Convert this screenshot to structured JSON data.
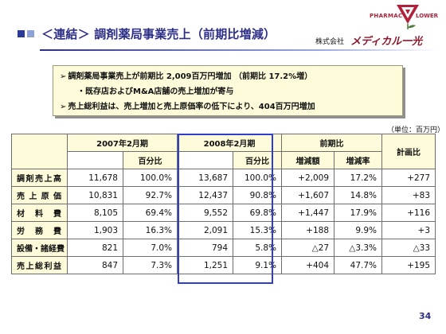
{
  "header": {
    "title": "＜連結＞ 調剤薬局事業売上（前期比増減）",
    "company_prefix": "株式会社",
    "company_name": "メディカル一光",
    "logo_left": "PHARMAC",
    "logo_right": "LOWER"
  },
  "summary": {
    "line1": "調剤薬局事業売上が前期比 2,009百万円増加 （前期比 17.2%増）",
    "line2": "・既存店およびM&A店舗の売上増加が寄与",
    "line3": "売上総利益は、売上増加と売上原価率の低下により、404百万円増加"
  },
  "unit_label": "（単位：百万円）",
  "table": {
    "col_fy2007": "2007年2月期",
    "col_fy2008": "2008年2月期",
    "col_yoy": "前期比",
    "col_plan": "計画比",
    "sub_ratio1": "百分比",
    "sub_ratio2": "百分比",
    "sub_change": "増減額",
    "sub_rate": "増減率",
    "rows": [
      {
        "label": "調剤売上高",
        "v2007": "11,678",
        "p2007": "100.0%",
        "v2008": "13,687",
        "p2008": "100.0%",
        "chg": "+2,009",
        "rate": "17.2%",
        "plan": "+277"
      },
      {
        "label": "売上原価",
        "v2007": "10,831",
        "p2007": "92.7%",
        "v2008": "12,437",
        "p2008": "90.8%",
        "chg": "+1,607",
        "rate": "14.8%",
        "plan": "+83"
      },
      {
        "label": "材料費",
        "v2007": "8,105",
        "p2007": "69.4%",
        "v2008": "9,552",
        "p2008": "69.8%",
        "chg": "+1,447",
        "rate": "17.9%",
        "plan": "+116"
      },
      {
        "label": "労務費",
        "v2007": "1,903",
        "p2007": "16.3%",
        "v2008": "2,091",
        "p2008": "15.3%",
        "chg": "+188",
        "rate": "9.9%",
        "plan": "+3"
      },
      {
        "label": "設備・諸経費",
        "v2007": "821",
        "p2007": "7.0%",
        "v2008": "794",
        "p2008": "5.8%",
        "chg": "△27",
        "rate": "△3.3%",
        "plan": "△33"
      },
      {
        "label": "売上総利益",
        "v2007": "847",
        "p2007": "7.3%",
        "v2008": "1,251",
        "p2008": "9.1%",
        "chg": "+404",
        "rate": "47.7%",
        "plan": "+195"
      }
    ]
  },
  "page_number": "34"
}
